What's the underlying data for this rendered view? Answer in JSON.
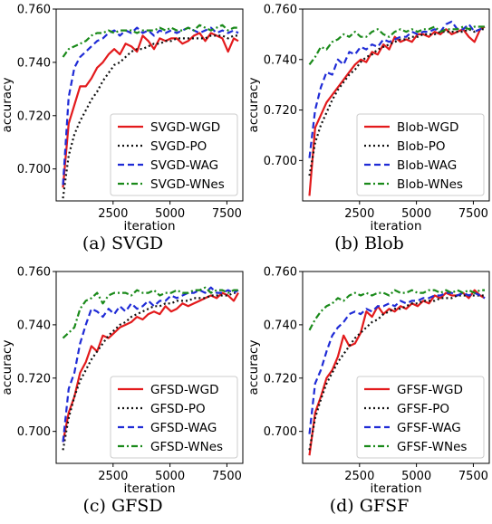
{
  "styles": {
    "WGD": {
      "color": "#e31a1c",
      "dash": "",
      "width": 2.2
    },
    "PO": {
      "color": "#111111",
      "dash": "2,3",
      "width": 2.2
    },
    "WAG": {
      "color": "#1f2bd6",
      "dash": "7,4",
      "width": 2.2
    },
    "WNes": {
      "color": "#1a8a1a",
      "dash": "7,3,2,3",
      "width": 2.2
    }
  },
  "chart_data": [
    {
      "type": "line",
      "caption": "(a)  SVGD",
      "xlabel": "iteration",
      "ylabel": "accuracy",
      "xlim": [
        0,
        8200
      ],
      "ylim": [
        0.688,
        0.76
      ],
      "xticks": [
        2500,
        5000,
        7500
      ],
      "xtick_labels": [
        "2500",
        "5000",
        "7500"
      ],
      "yticks": [
        0.7,
        0.72,
        0.74,
        0.76
      ],
      "ytick_labels": [
        "0.700",
        "0.720",
        "0.740",
        "0.760"
      ],
      "legend_position": "lower-right",
      "x": [
        300,
        550,
        800,
        1050,
        1300,
        1550,
        1800,
        2050,
        2300,
        2550,
        2800,
        3050,
        3300,
        3550,
        3800,
        4050,
        4300,
        4550,
        4800,
        5050,
        5300,
        5550,
        5800,
        6050,
        6300,
        6550,
        6800,
        7050,
        7300,
        7550,
        7800,
        8000
      ],
      "series": [
        {
          "name": "SVGD-WGD",
          "key": "WGD",
          "values": [
            0.693,
            0.717,
            0.724,
            0.731,
            0.731,
            0.734,
            0.738,
            0.74,
            0.743,
            0.745,
            0.743,
            0.747,
            0.746,
            0.744,
            0.75,
            0.748,
            0.745,
            0.749,
            0.748,
            0.749,
            0.749,
            0.747,
            0.748,
            0.75,
            0.751,
            0.748,
            0.751,
            0.75,
            0.749,
            0.744,
            0.749,
            0.748
          ]
        },
        {
          "name": "SVGD-PO",
          "key": "PO",
          "values": [
            0.689,
            0.705,
            0.713,
            0.718,
            0.722,
            0.726,
            0.729,
            0.733,
            0.736,
            0.739,
            0.74,
            0.742,
            0.744,
            0.745,
            0.745,
            0.746,
            0.747,
            0.747,
            0.748,
            0.748,
            0.749,
            0.749,
            0.749,
            0.749,
            0.749,
            0.749,
            0.75,
            0.75,
            0.75,
            0.749,
            0.75,
            0.75
          ]
        },
        {
          "name": "SVGD-WAG",
          "key": "WAG",
          "values": [
            0.694,
            0.727,
            0.738,
            0.742,
            0.744,
            0.746,
            0.748,
            0.749,
            0.751,
            0.752,
            0.75,
            0.752,
            0.751,
            0.753,
            0.751,
            0.752,
            0.75,
            0.752,
            0.751,
            0.752,
            0.751,
            0.752,
            0.753,
            0.752,
            0.751,
            0.752,
            0.753,
            0.751,
            0.752,
            0.751,
            0.752,
            0.751
          ]
        },
        {
          "name": "SVGD-WNes",
          "key": "WNes",
          "values": [
            0.742,
            0.745,
            0.746,
            0.747,
            0.748,
            0.75,
            0.751,
            0.751,
            0.752,
            0.751,
            0.752,
            0.752,
            0.752,
            0.751,
            0.752,
            0.752,
            0.752,
            0.753,
            0.752,
            0.753,
            0.752,
            0.752,
            0.753,
            0.752,
            0.754,
            0.753,
            0.752,
            0.753,
            0.754,
            0.752,
            0.753,
            0.753
          ]
        }
      ]
    },
    {
      "type": "line",
      "caption": "(b)  Blob",
      "xlabel": "iteration",
      "ylabel": "accuracy",
      "xlim": [
        0,
        8200
      ],
      "ylim": [
        0.684,
        0.76
      ],
      "xticks": [
        2500,
        5000,
        7500
      ],
      "xtick_labels": [
        "2500",
        "5000",
        "7500"
      ],
      "yticks": [
        0.7,
        0.72,
        0.74,
        0.76
      ],
      "ytick_labels": [
        "0.700",
        "0.720",
        "0.740",
        "0.760"
      ],
      "legend_position": "lower-right",
      "x": [
        300,
        550,
        800,
        1050,
        1300,
        1550,
        1800,
        2050,
        2300,
        2550,
        2800,
        3050,
        3300,
        3550,
        3800,
        4050,
        4300,
        4550,
        4800,
        5050,
        5300,
        5550,
        5800,
        6050,
        6300,
        6550,
        6800,
        7050,
        7300,
        7550,
        7800,
        8000
      ],
      "series": [
        {
          "name": "Blob-WGD",
          "key": "WGD",
          "values": [
            0.686,
            0.713,
            0.718,
            0.723,
            0.726,
            0.729,
            0.732,
            0.735,
            0.738,
            0.74,
            0.739,
            0.743,
            0.742,
            0.746,
            0.744,
            0.749,
            0.747,
            0.748,
            0.747,
            0.75,
            0.75,
            0.749,
            0.751,
            0.75,
            0.752,
            0.75,
            0.751,
            0.752,
            0.749,
            0.747,
            0.752,
            0.753
          ]
        },
        {
          "name": "Blob-PO",
          "key": "PO",
          "values": [
            0.694,
            0.707,
            0.714,
            0.719,
            0.724,
            0.728,
            0.731,
            0.734,
            0.736,
            0.739,
            0.741,
            0.742,
            0.744,
            0.745,
            0.746,
            0.747,
            0.748,
            0.748,
            0.749,
            0.749,
            0.75,
            0.75,
            0.75,
            0.751,
            0.751,
            0.751,
            0.751,
            0.751,
            0.752,
            0.751,
            0.752,
            0.752
          ]
        },
        {
          "name": "Blob-WAG",
          "key": "WAG",
          "values": [
            0.701,
            0.72,
            0.729,
            0.735,
            0.734,
            0.74,
            0.738,
            0.743,
            0.742,
            0.745,
            0.744,
            0.746,
            0.745,
            0.748,
            0.747,
            0.748,
            0.749,
            0.749,
            0.751,
            0.75,
            0.751,
            0.751,
            0.752,
            0.751,
            0.754,
            0.755,
            0.752,
            0.752,
            0.754,
            0.751,
            0.752,
            0.753
          ]
        },
        {
          "name": "Blob-WNes",
          "key": "WNes",
          "values": [
            0.738,
            0.741,
            0.745,
            0.744,
            0.747,
            0.748,
            0.75,
            0.749,
            0.751,
            0.749,
            0.749,
            0.751,
            0.752,
            0.75,
            0.749,
            0.751,
            0.752,
            0.751,
            0.752,
            0.751,
            0.752,
            0.752,
            0.753,
            0.751,
            0.752,
            0.752,
            0.752,
            0.753,
            0.752,
            0.753,
            0.753,
            0.753
          ]
        }
      ]
    },
    {
      "type": "line",
      "caption": "(c)  GFSD",
      "xlabel": "iteration",
      "ylabel": "accuracy",
      "xlim": [
        0,
        8200
      ],
      "ylim": [
        0.688,
        0.76
      ],
      "xticks": [
        2500,
        5000,
        7500
      ],
      "xtick_labels": [
        "2500",
        "5000",
        "7500"
      ],
      "yticks": [
        0.7,
        0.72,
        0.74,
        0.76
      ],
      "ytick_labels": [
        "0.700",
        "0.720",
        "0.740",
        "0.760"
      ],
      "legend_position": "lower-right",
      "x": [
        300,
        550,
        800,
        1050,
        1300,
        1550,
        1800,
        2050,
        2300,
        2550,
        2800,
        3050,
        3300,
        3550,
        3800,
        4050,
        4300,
        4550,
        4800,
        5050,
        5300,
        5550,
        5800,
        6050,
        6300,
        6550,
        6800,
        7050,
        7300,
        7550,
        7800,
        8000
      ],
      "series": [
        {
          "name": "GFSD-WGD",
          "key": "WGD",
          "values": [
            0.696,
            0.707,
            0.713,
            0.722,
            0.726,
            0.732,
            0.73,
            0.736,
            0.735,
            0.737,
            0.739,
            0.74,
            0.741,
            0.743,
            0.742,
            0.744,
            0.745,
            0.744,
            0.747,
            0.745,
            0.746,
            0.748,
            0.747,
            0.748,
            0.749,
            0.75,
            0.751,
            0.75,
            0.752,
            0.751,
            0.749,
            0.752
          ]
        },
        {
          "name": "GFSD-PO",
          "key": "PO",
          "values": [
            0.693,
            0.705,
            0.713,
            0.719,
            0.723,
            0.727,
            0.73,
            0.733,
            0.736,
            0.738,
            0.74,
            0.741,
            0.743,
            0.744,
            0.745,
            0.746,
            0.747,
            0.747,
            0.748,
            0.748,
            0.749,
            0.749,
            0.749,
            0.75,
            0.75,
            0.75,
            0.751,
            0.751,
            0.751,
            0.751,
            0.752,
            0.752
          ]
        },
        {
          "name": "GFSD-WAG",
          "key": "WAG",
          "values": [
            0.696,
            0.716,
            0.722,
            0.733,
            0.74,
            0.746,
            0.745,
            0.743,
            0.746,
            0.744,
            0.747,
            0.745,
            0.748,
            0.746,
            0.747,
            0.749,
            0.747,
            0.749,
            0.749,
            0.751,
            0.75,
            0.751,
            0.752,
            0.752,
            0.753,
            0.752,
            0.754,
            0.752,
            0.752,
            0.753,
            0.752,
            0.753
          ]
        },
        {
          "name": "GFSD-WNes",
          "key": "WNes",
          "values": [
            0.735,
            0.737,
            0.739,
            0.746,
            0.749,
            0.75,
            0.752,
            0.748,
            0.751,
            0.752,
            0.752,
            0.752,
            0.751,
            0.753,
            0.752,
            0.752,
            0.753,
            0.751,
            0.752,
            0.752,
            0.753,
            0.752,
            0.752,
            0.753,
            0.753,
            0.754,
            0.752,
            0.753,
            0.753,
            0.752,
            0.753,
            0.753
          ]
        }
      ]
    },
    {
      "type": "line",
      "caption": "(d)  GFSF",
      "xlabel": "iteration",
      "ylabel": "accuracy",
      "xlim": [
        0,
        8200
      ],
      "ylim": [
        0.688,
        0.76
      ],
      "xticks": [
        2500,
        5000,
        7500
      ],
      "xtick_labels": [
        "2500",
        "5000",
        "7500"
      ],
      "yticks": [
        0.7,
        0.72,
        0.74,
        0.76
      ],
      "ytick_labels": [
        "0.700",
        "0.720",
        "0.740",
        "0.760"
      ],
      "legend_position": "lower-right",
      "x": [
        300,
        550,
        800,
        1050,
        1300,
        1550,
        1800,
        2050,
        2300,
        2550,
        2800,
        3050,
        3300,
        3550,
        3800,
        4050,
        4300,
        4550,
        4800,
        5050,
        5300,
        5550,
        5800,
        6050,
        6300,
        6550,
        6800,
        7050,
        7300,
        7550,
        7800,
        8000
      ],
      "series": [
        {
          "name": "GFSF-WGD",
          "key": "WGD",
          "values": [
            0.691,
            0.707,
            0.713,
            0.72,
            0.723,
            0.728,
            0.736,
            0.732,
            0.733,
            0.737,
            0.745,
            0.743,
            0.747,
            0.744,
            0.746,
            0.745,
            0.747,
            0.746,
            0.748,
            0.747,
            0.749,
            0.748,
            0.751,
            0.75,
            0.752,
            0.751,
            0.751,
            0.752,
            0.75,
            0.753,
            0.751,
            0.75
          ]
        },
        {
          "name": "GFSF-PO",
          "key": "PO",
          "values": [
            0.693,
            0.705,
            0.712,
            0.718,
            0.722,
            0.726,
            0.729,
            0.732,
            0.735,
            0.737,
            0.739,
            0.741,
            0.742,
            0.744,
            0.745,
            0.746,
            0.746,
            0.747,
            0.748,
            0.748,
            0.749,
            0.749,
            0.749,
            0.75,
            0.75,
            0.75,
            0.751,
            0.751,
            0.751,
            0.751,
            0.751,
            0.751
          ]
        },
        {
          "name": "GFSF-WAG",
          "key": "WAG",
          "values": [
            0.699,
            0.718,
            0.723,
            0.73,
            0.736,
            0.739,
            0.741,
            0.744,
            0.745,
            0.744,
            0.746,
            0.745,
            0.747,
            0.747,
            0.748,
            0.747,
            0.749,
            0.748,
            0.749,
            0.749,
            0.75,
            0.75,
            0.751,
            0.751,
            0.752,
            0.752,
            0.751,
            0.752,
            0.751,
            0.752,
            0.751,
            0.75
          ]
        },
        {
          "name": "GFSF-WNes",
          "key": "WNes",
          "values": [
            0.738,
            0.742,
            0.745,
            0.747,
            0.748,
            0.75,
            0.749,
            0.751,
            0.752,
            0.751,
            0.752,
            0.751,
            0.752,
            0.752,
            0.751,
            0.753,
            0.752,
            0.752,
            0.753,
            0.752,
            0.752,
            0.753,
            0.753,
            0.752,
            0.753,
            0.752,
            0.753,
            0.752,
            0.753,
            0.752,
            0.753,
            0.753
          ]
        }
      ]
    }
  ]
}
